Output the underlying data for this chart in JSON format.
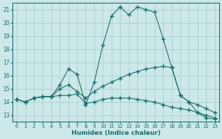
{
  "title": "",
  "xlabel": "Humidex (Indice chaleur)",
  "ylabel": "",
  "background_color": "#cce8e8",
  "grid_color": "#aacece",
  "line_color": "#1a6b6b",
  "xlim": [
    -0.5,
    23.5
  ],
  "ylim": [
    12.5,
    21.5
  ],
  "yticks": [
    13,
    14,
    15,
    16,
    17,
    18,
    19,
    20,
    21
  ],
  "xticks": [
    0,
    1,
    2,
    3,
    4,
    5,
    6,
    7,
    8,
    9,
    10,
    11,
    12,
    13,
    14,
    15,
    16,
    17,
    18,
    19,
    20,
    21,
    22,
    23
  ],
  "series": [
    {
      "x": [
        0,
        1,
        2,
        3,
        4,
        5,
        6,
        7,
        8,
        9,
        10,
        11,
        12,
        13,
        14,
        15,
        16,
        17,
        18,
        19,
        20,
        21,
        22,
        23
      ],
      "y": [
        14.2,
        14.0,
        14.3,
        14.4,
        14.4,
        15.3,
        16.5,
        16.1,
        13.8,
        15.5,
        18.3,
        20.5,
        21.2,
        20.6,
        21.2,
        21.0,
        20.8,
        18.8,
        16.6,
        14.5,
        14.0,
        13.2,
        12.8,
        12.7
      ]
    },
    {
      "x": [
        0,
        1,
        2,
        3,
        4,
        5,
        6,
        7,
        8,
        9,
        10,
        11,
        12,
        13,
        14,
        15,
        16,
        17,
        18,
        19,
        20,
        21,
        22,
        23
      ],
      "y": [
        14.2,
        14.0,
        14.3,
        14.4,
        14.4,
        15.0,
        15.3,
        14.8,
        14.3,
        14.8,
        15.2,
        15.5,
        15.8,
        16.1,
        16.3,
        16.5,
        16.6,
        16.7,
        16.6,
        14.5,
        14.0,
        13.8,
        13.5,
        13.2
      ]
    },
    {
      "x": [
        0,
        1,
        2,
        3,
        4,
        5,
        6,
        7,
        8,
        9,
        10,
        11,
        12,
        13,
        14,
        15,
        16,
        17,
        18,
        19,
        20,
        21,
        22,
        23
      ],
      "y": [
        14.2,
        14.0,
        14.3,
        14.4,
        14.4,
        14.5,
        14.5,
        14.6,
        13.9,
        14.0,
        14.2,
        14.3,
        14.3,
        14.3,
        14.2,
        14.1,
        14.0,
        13.8,
        13.6,
        13.5,
        13.4,
        13.2,
        13.0,
        12.8
      ]
    }
  ]
}
